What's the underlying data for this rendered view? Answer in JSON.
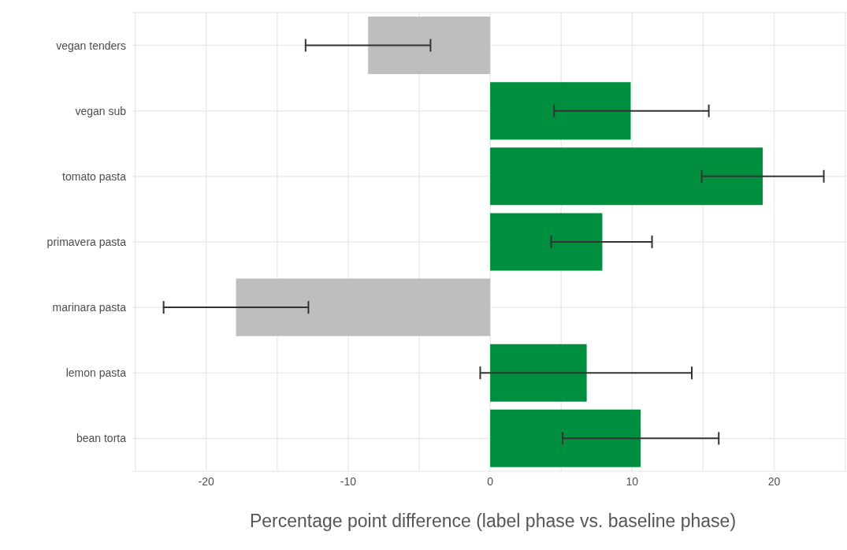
{
  "chart_data": {
    "type": "bar",
    "orientation": "horizontal",
    "xlabel": "Percentage point difference (label phase vs. baseline phase)",
    "categories": [
      "vegan tenders",
      "vegan sub",
      "tomato pasta",
      "primavera pasta",
      "marinara pasta",
      "lemon pasta",
      "bean torta"
    ],
    "values": [
      -8.6,
      9.9,
      19.2,
      7.9,
      -17.9,
      6.8,
      10.6
    ],
    "colors": [
      "#bebebe",
      "#008f3f",
      "#008f3f",
      "#008f3f",
      "#bebebe",
      "#008f3f",
      "#008f3f"
    ],
    "errors": [
      [
        -13.0,
        -4.2
      ],
      [
        4.5,
        15.4
      ],
      [
        14.9,
        23.5
      ],
      [
        4.3,
        11.4
      ],
      [
        -23.0,
        -12.8
      ],
      [
        -0.7,
        14.2
      ],
      [
        5.1,
        16.1
      ]
    ],
    "xlim": [
      -25.2,
      25.3
    ],
    "xticks": [
      {
        "value": -25,
        "label": null
      },
      -20,
      {
        "value": -15,
        "label": null
      },
      -10,
      {
        "value": -5,
        "label": null
      },
      0,
      {
        "value": 5,
        "label": null
      },
      10,
      {
        "value": 15,
        "label": null
      },
      20,
      {
        "value": 25,
        "label": null
      }
    ],
    "grid": true
  }
}
